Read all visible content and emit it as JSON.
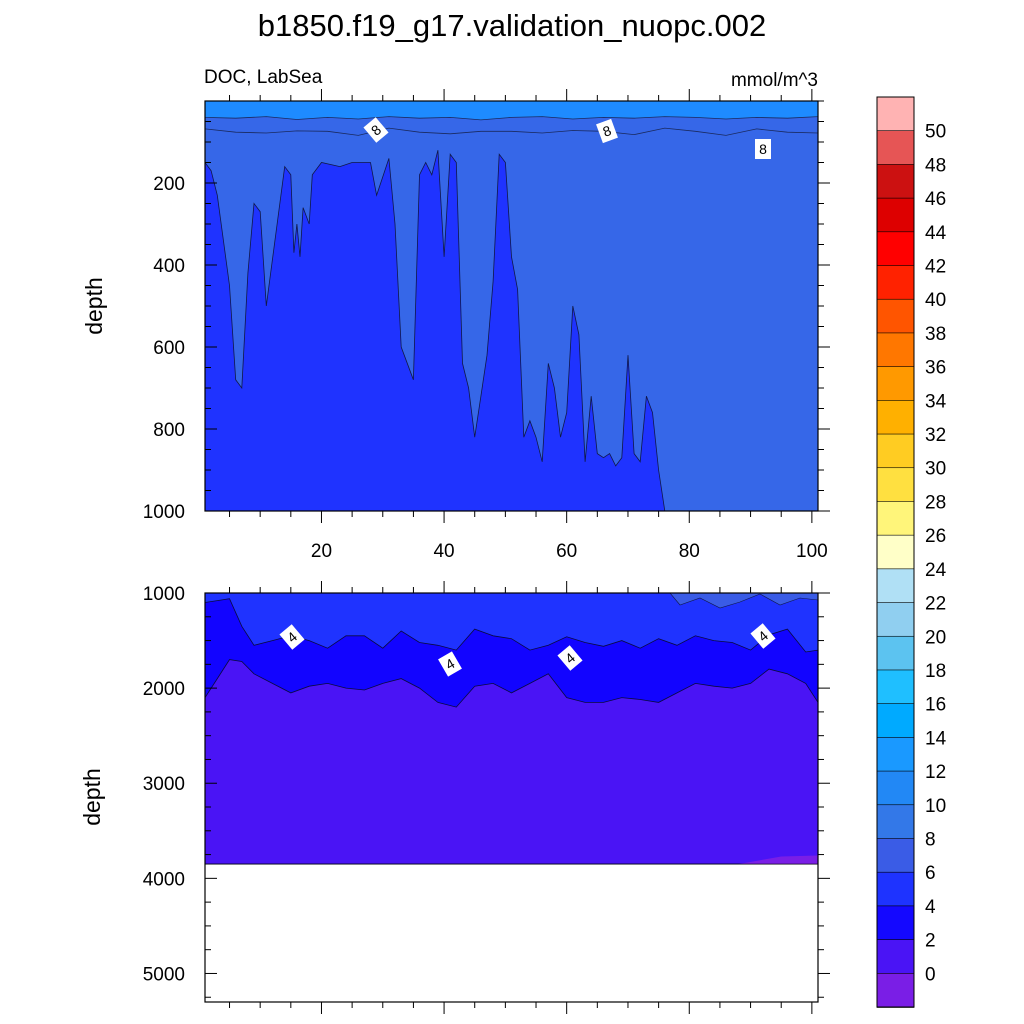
{
  "header": {
    "title": "b1850.f19_g17.validation_nuopc.002",
    "left_subtitle": "DOC, LabSea",
    "right_subtitle": "mmol/m^3"
  },
  "chart_data": [
    {
      "type": "contour",
      "panel": "upper",
      "xlabel": "",
      "ylabel": "depth",
      "xlim": [
        1,
        101
      ],
      "ylim": [
        0,
        1000
      ],
      "y_reversed": true,
      "x_ticks": [
        "20",
        "40",
        "60",
        "80",
        "100"
      ],
      "y_ticks": [
        "200",
        "400",
        "600",
        "800",
        "1000"
      ],
      "contour_labels": [
        "8",
        "8",
        "8"
      ],
      "regions": [
        {
          "color": "#1e8bff",
          "band": "10-12",
          "x": [
            1,
            101
          ],
          "top_depth": 0,
          "bottom_depth": [
            40,
            42,
            38,
            45,
            40,
            44,
            38,
            42,
            40,
            46,
            40,
            38,
            44,
            40,
            42,
            38,
            40,
            44,
            40,
            42,
            38
          ]
        },
        {
          "color": "#3667e8",
          "band": "6-8",
          "x": [
            1,
            101
          ],
          "top_depth": 80,
          "bottom_depth": 1000
        },
        {
          "color": "#1f33ff",
          "band": "4-6",
          "x": [
            1,
            2,
            3,
            5,
            6,
            7,
            8,
            9,
            10,
            11,
            14,
            15,
            15.5,
            16,
            16.5,
            17,
            18,
            18.5,
            20,
            23,
            25,
            27,
            28,
            29,
            31,
            32,
            33,
            35,
            36,
            37,
            38,
            39,
            40,
            41,
            42,
            43,
            44,
            45,
            46,
            47,
            48,
            49,
            50,
            51,
            52,
            53,
            54,
            55,
            56,
            57,
            58,
            59,
            60,
            61,
            62,
            63,
            64,
            65,
            66,
            67,
            68,
            69,
            70,
            71,
            72,
            73,
            74,
            75,
            76
          ],
          "top_depth": [
            150,
            170,
            230,
            450,
            680,
            700,
            420,
            250,
            270,
            500,
            160,
            180,
            370,
            300,
            380,
            260,
            300,
            180,
            150,
            160,
            150,
            150,
            150,
            230,
            140,
            300,
            600,
            680,
            180,
            150,
            180,
            120,
            380,
            130,
            150,
            640,
            700,
            820,
            720,
            620,
            440,
            130,
            150,
            380,
            460,
            820,
            780,
            820,
            880,
            640,
            700,
            820,
            760,
            500,
            570,
            880,
            720,
            860,
            870,
            860,
            890,
            870,
            620,
            860,
            880,
            720,
            760,
            900,
            1000
          ]
        }
      ]
    },
    {
      "type": "contour",
      "panel": "lower",
      "xlabel": "",
      "ylabel": "depth",
      "xlim": [
        1,
        101
      ],
      "ylim": [
        1000,
        5300
      ],
      "y_reversed": true,
      "y_ticks": [
        "1000",
        "2000",
        "3000",
        "4000",
        "5000"
      ],
      "bottom_depth": 3850,
      "contour_labels": [
        "4",
        "4",
        "4",
        "4"
      ],
      "regions": [
        {
          "color": "#1f33ff",
          "band": "4-6",
          "top_depth": 1000
        },
        {
          "color": "#1204ff",
          "band": "2-4",
          "x": [
            1,
            3,
            5,
            7,
            9,
            12,
            15,
            18,
            21,
            24,
            27,
            30,
            33,
            36,
            39,
            42,
            45,
            48,
            51,
            54,
            57,
            60,
            63,
            66,
            69,
            72,
            75,
            78,
            81,
            84,
            87,
            90,
            93,
            96,
            99,
            101
          ],
          "top_depth": [
            1100,
            1080,
            1060,
            1350,
            1550,
            1500,
            1450,
            1500,
            1580,
            1450,
            1450,
            1580,
            1400,
            1520,
            1550,
            1600,
            1380,
            1450,
            1480,
            1600,
            1550,
            1460,
            1520,
            1560,
            1500,
            1580,
            1480,
            1550,
            1450,
            1500,
            1520,
            1600,
            1440,
            1380,
            1620,
            1600
          ]
        },
        {
          "color": "#4a14f5",
          "band": "0-2",
          "x": [
            1,
            3,
            5,
            7,
            9,
            12,
            15,
            18,
            21,
            24,
            27,
            30,
            33,
            36,
            39,
            42,
            45,
            48,
            51,
            54,
            57,
            60,
            63,
            66,
            69,
            72,
            75,
            78,
            81,
            84,
            87,
            90,
            93,
            96,
            99,
            101
          ],
          "top_depth": [
            2100,
            1900,
            1700,
            1720,
            1850,
            1950,
            2050,
            1980,
            1950,
            2000,
            2020,
            1950,
            1900,
            2000,
            2150,
            2200,
            1980,
            1950,
            2050,
            1950,
            1850,
            2100,
            2150,
            2150,
            2100,
            2120,
            2150,
            2050,
            1950,
            1980,
            2000,
            1950,
            1800,
            1850,
            1950,
            2150
          ]
        },
        {
          "color": "#7a1ee6",
          "band": "<0",
          "x": [
            88,
            101
          ],
          "top_depth": [
            3850,
            3760
          ]
        }
      ]
    }
  ],
  "colorbar": {
    "labels": [
      "50",
      "48",
      "46",
      "44",
      "42",
      "40",
      "38",
      "36",
      "34",
      "32",
      "30",
      "28",
      "26",
      "24",
      "22",
      "20",
      "18",
      "16",
      "14",
      "12",
      "10",
      "8",
      "6",
      "4",
      "2",
      "0"
    ],
    "colors": [
      "#ffb3b3",
      "#e65555",
      "#cc1111",
      "#dd0000",
      "#ff0000",
      "#ff2200",
      "#ff5500",
      "#ff7700",
      "#ff9900",
      "#ffb000",
      "#ffcc22",
      "#ffe040",
      "#fff57a",
      "#ffffc8",
      "#b0e0f5",
      "#90cff0",
      "#5cc3f0",
      "#1fbfff",
      "#00aaff",
      "#1a99ff",
      "#2288f5",
      "#3378e8",
      "#3a5ce6",
      "#1e33ff",
      "#1408ff",
      "#4a14f5",
      "#7a1ee6"
    ]
  }
}
